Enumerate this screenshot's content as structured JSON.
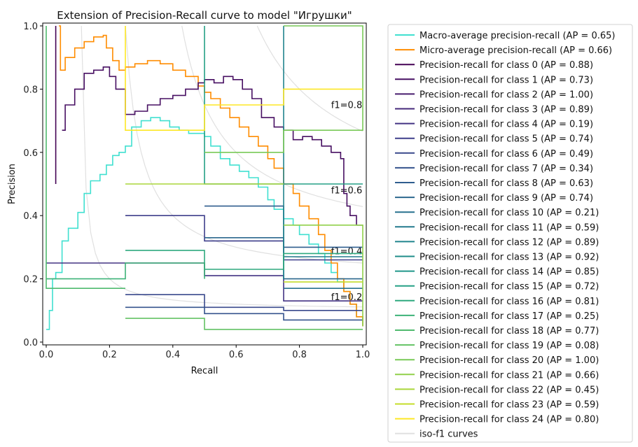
{
  "chart_data": {
    "type": "line",
    "title": "Extension of Precision-Recall curve to model \"Игрушки\"",
    "xlabel": "Recall",
    "ylabel": "Precision",
    "xlim": [
      0,
      1
    ],
    "ylim": [
      0,
      1
    ],
    "xticks": [
      "0.0",
      "0.2",
      "0.4",
      "0.6",
      "0.8",
      "1.0"
    ],
    "yticks": [
      "0.0",
      "0.2",
      "0.4",
      "0.6",
      "0.8",
      "1.0"
    ],
    "grid": false,
    "legend_position": "outside-right",
    "iso_f1": [
      {
        "f1": 0.2,
        "label": "f1=0.2"
      },
      {
        "f1": 0.4,
        "label": "f1=0.4"
      },
      {
        "f1": 0.6,
        "label": "f1=0.6"
      },
      {
        "f1": 0.8,
        "label": "f1=0.8"
      }
    ],
    "series": [
      {
        "name": "Macro-average precision-recall (AP = 0.65)",
        "color": "#40e0d0",
        "points": [
          [
            0,
            0.04
          ],
          [
            0.01,
            0.1
          ],
          [
            0.02,
            0.2
          ],
          [
            0.03,
            0.22
          ],
          [
            0.05,
            0.32
          ],
          [
            0.07,
            0.36
          ],
          [
            0.1,
            0.41
          ],
          [
            0.12,
            0.47
          ],
          [
            0.14,
            0.51
          ],
          [
            0.17,
            0.53
          ],
          [
            0.19,
            0.56
          ],
          [
            0.21,
            0.59
          ],
          [
            0.23,
            0.6
          ],
          [
            0.25,
            0.62
          ],
          [
            0.27,
            0.68
          ],
          [
            0.3,
            0.7
          ],
          [
            0.33,
            0.71
          ],
          [
            0.36,
            0.7
          ],
          [
            0.39,
            0.68
          ],
          [
            0.42,
            0.67
          ],
          [
            0.45,
            0.66
          ],
          [
            0.48,
            0.66
          ],
          [
            0.5,
            0.65
          ],
          [
            0.52,
            0.62
          ],
          [
            0.55,
            0.58
          ],
          [
            0.58,
            0.56
          ],
          [
            0.61,
            0.54
          ],
          [
            0.64,
            0.52
          ],
          [
            0.67,
            0.49
          ],
          [
            0.7,
            0.45
          ],
          [
            0.72,
            0.42
          ],
          [
            0.75,
            0.39
          ],
          [
            0.78,
            0.37
          ],
          [
            0.8,
            0.34
          ],
          [
            0.83,
            0.31
          ],
          [
            0.86,
            0.28
          ],
          [
            0.88,
            0.25
          ],
          [
            0.9,
            0.22
          ],
          [
            0.92,
            0.19
          ],
          [
            0.94,
            0.16
          ],
          [
            0.96,
            0.12
          ],
          [
            0.98,
            0.08
          ],
          [
            1.0,
            0.05
          ]
        ]
      },
      {
        "name": "Micro-average precision-recall (AP = 0.66)",
        "color": "#ff8c00",
        "points": [
          [
            0.04,
            1.0
          ],
          [
            0.045,
            0.86
          ],
          [
            0.06,
            0.9
          ],
          [
            0.09,
            0.93
          ],
          [
            0.12,
            0.95
          ],
          [
            0.15,
            0.965
          ],
          [
            0.18,
            0.97
          ],
          [
            0.19,
            0.93
          ],
          [
            0.21,
            0.89
          ],
          [
            0.23,
            0.86
          ],
          [
            0.25,
            0.87
          ],
          [
            0.28,
            0.88
          ],
          [
            0.32,
            0.89
          ],
          [
            0.36,
            0.88
          ],
          [
            0.4,
            0.86
          ],
          [
            0.44,
            0.84
          ],
          [
            0.48,
            0.81
          ],
          [
            0.5,
            0.79
          ],
          [
            0.52,
            0.77
          ],
          [
            0.55,
            0.74
          ],
          [
            0.58,
            0.71
          ],
          [
            0.61,
            0.68
          ],
          [
            0.64,
            0.65
          ],
          [
            0.67,
            0.62
          ],
          [
            0.7,
            0.58
          ],
          [
            0.72,
            0.55
          ],
          [
            0.75,
            0.5
          ],
          [
            0.78,
            0.47
          ],
          [
            0.8,
            0.43
          ],
          [
            0.83,
            0.39
          ],
          [
            0.86,
            0.34
          ],
          [
            0.88,
            0.29
          ],
          [
            0.9,
            0.25
          ],
          [
            0.92,
            0.2
          ],
          [
            0.94,
            0.16
          ],
          [
            0.96,
            0.12
          ],
          [
            0.98,
            0.08
          ],
          [
            1.0,
            0.05
          ]
        ]
      },
      {
        "name": "Precision-recall for class 0 (AP = 0.88)",
        "color": "#440154",
        "points": [
          [
            0.03,
            0.5
          ],
          [
            0.03,
            1.0
          ]
        ]
      },
      {
        "name": "Precision-recall for class 1 (AP = 0.73)",
        "color": "#470f62",
        "points": [
          [
            0.05,
            0.67
          ],
          [
            0.06,
            0.75
          ],
          [
            0.09,
            0.8
          ],
          [
            0.12,
            0.85
          ],
          [
            0.15,
            0.86
          ],
          [
            0.18,
            0.87
          ],
          [
            0.2,
            0.84
          ],
          [
            0.22,
            0.8
          ],
          [
            0.25,
            0.72
          ],
          [
            0.28,
            0.73
          ],
          [
            0.32,
            0.75
          ],
          [
            0.36,
            0.77
          ],
          [
            0.4,
            0.78
          ],
          [
            0.44,
            0.8
          ],
          [
            0.48,
            0.82
          ],
          [
            0.5,
            0.83
          ],
          [
            0.53,
            0.82
          ],
          [
            0.56,
            0.84
          ],
          [
            0.59,
            0.83
          ],
          [
            0.62,
            0.8
          ],
          [
            0.65,
            0.77
          ],
          [
            0.68,
            0.71
          ],
          [
            0.72,
            0.68
          ],
          [
            0.75,
            0.67
          ],
          [
            0.78,
            0.64
          ],
          [
            0.81,
            0.65
          ],
          [
            0.84,
            0.64
          ],
          [
            0.87,
            0.62
          ],
          [
            0.9,
            0.6
          ],
          [
            0.93,
            0.58
          ],
          [
            0.94,
            0.47
          ],
          [
            0.95,
            0.43
          ],
          [
            0.96,
            0.4
          ],
          [
            0.98,
            0.37
          ],
          [
            1.0,
            0.37
          ]
        ]
      },
      {
        "name": "Precision-recall for class 2 (AP = 1.00)",
        "color": "#481c6e",
        "points": []
      },
      {
        "name": "Precision-recall for class 3 (AP = 0.89)",
        "color": "#46287a",
        "points": []
      },
      {
        "name": "Precision-recall for class 4 (AP = 0.19)",
        "color": "#433383",
        "points": [
          [
            0,
            0.25
          ],
          [
            0.5,
            0.25
          ],
          [
            0.5,
            0.21
          ],
          [
            0.75,
            0.21
          ],
          [
            0.75,
            0.13
          ],
          [
            1,
            0.13
          ]
        ]
      },
      {
        "name": "Precision-recall for class 5 (AP = 0.74)",
        "color": "#3e3e8b",
        "points": [
          [
            0.25,
            0.4
          ],
          [
            0.5,
            0.4
          ],
          [
            0.5,
            0.32
          ],
          [
            0.75,
            0.32
          ],
          [
            0.75,
            0.26
          ],
          [
            1,
            0.26
          ]
        ]
      },
      {
        "name": "Precision-recall for class 6 (AP = 0.49)",
        "color": "#39498c",
        "points": [
          [
            0.25,
            0.15
          ],
          [
            0.5,
            0.15
          ],
          [
            0.5,
            0.11
          ],
          [
            0.75,
            0.11
          ],
          [
            0.75,
            0.1
          ],
          [
            1,
            0.1
          ]
        ]
      },
      {
        "name": "Precision-recall for class 7 (AP = 0.34)",
        "color": "#34538d",
        "points": [
          [
            0.25,
            0.11
          ],
          [
            0.5,
            0.11
          ],
          [
            0.5,
            0.09
          ],
          [
            0.75,
            0.09
          ],
          [
            0.75,
            0.07
          ],
          [
            1,
            0.07
          ]
        ]
      },
      {
        "name": "Precision-recall for class 8 (AP = 0.63)",
        "color": "#2f5d8e",
        "points": [
          [
            0.5,
            0.43
          ],
          [
            0.75,
            0.43
          ],
          [
            0.75,
            0.3
          ],
          [
            1,
            0.3
          ]
        ]
      },
      {
        "name": "Precision-recall for class 9 (AP = 0.74)",
        "color": "#2b678e",
        "points": [
          [
            0.5,
            0.33
          ],
          [
            0.75,
            0.33
          ],
          [
            0.75,
            0.2
          ],
          [
            1,
            0.2
          ]
        ]
      },
      {
        "name": "Precision-recall for class 10 (AP = 0.21)",
        "color": "#27718e",
        "points": [
          [
            0.75,
            0.17
          ],
          [
            1,
            0.17
          ]
        ]
      },
      {
        "name": "Precision-recall for class 11 (AP = 0.59)",
        "color": "#237a8e",
        "points": [
          [
            0.75,
            0.27
          ],
          [
            1,
            0.27
          ]
        ]
      },
      {
        "name": "Precision-recall for class 12 (AP = 0.89)",
        "color": "#20848d",
        "points": [
          [
            0.75,
            1.0
          ],
          [
            0.75,
            0.2
          ]
        ]
      },
      {
        "name": "Precision-recall for class 13 (AP = 0.92)",
        "color": "#1f8d8a",
        "points": []
      },
      {
        "name": "Precision-recall for class 14 (AP = 0.85)",
        "color": "#20968a",
        "points": []
      },
      {
        "name": "Precision-recall for class 15 (AP = 0.72)",
        "color": "#25a085",
        "points": [
          [
            0.5,
            1.0
          ],
          [
            0.5,
            0.5
          ],
          [
            0.75,
            0.5
          ],
          [
            0.75,
            0.5
          ],
          [
            1,
            0.5
          ]
        ]
      },
      {
        "name": "Precision-recall for class 16 (AP = 0.81)",
        "color": "#2fa97f",
        "points": [
          [
            0.25,
            0.29
          ],
          [
            0.5,
            0.29
          ],
          [
            0.5,
            0.23
          ],
          [
            0.75,
            0.23
          ],
          [
            0.75,
            0.28
          ],
          [
            1,
            0.28
          ]
        ]
      },
      {
        "name": "Precision-recall for class 17 (AP = 0.25)",
        "color": "#3db278",
        "points": [
          [
            0,
            0.2
          ],
          [
            0.25,
            0.2
          ],
          [
            0.25,
            0.25
          ],
          [
            0.5,
            0.25
          ],
          [
            0.5,
            0.2
          ]
        ]
      },
      {
        "name": "Precision-recall for class 18 (AP = 0.77)",
        "color": "#4fba6e",
        "points": [
          [
            0,
            1.0
          ],
          [
            0,
            0.17
          ],
          [
            0.25,
            0.17
          ]
        ]
      },
      {
        "name": "Precision-recall for class 19 (AP = 0.08)",
        "color": "#63c264",
        "points": [
          [
            0.25,
            0.075
          ],
          [
            0.5,
            0.075
          ],
          [
            0.5,
            0.04
          ],
          [
            0.75,
            0.04
          ],
          [
            1,
            0.04
          ]
        ]
      },
      {
        "name": "Precision-recall for class 20 (AP = 1.00)",
        "color": "#79c957",
        "points": [
          [
            0.5,
            0.6
          ],
          [
            0.75,
            0.6
          ],
          [
            0.75,
            0.67
          ],
          [
            1,
            0.67
          ],
          [
            1,
            1.0
          ],
          [
            0.75,
            1.0
          ]
        ]
      },
      {
        "name": "Precision-recall for class 21 (AP = 0.66)",
        "color": "#90d049",
        "points": [
          [
            0.75,
            0.37
          ],
          [
            1,
            0.37
          ],
          [
            1,
            0.05
          ]
        ]
      },
      {
        "name": "Precision-recall for class 22 (AP = 0.45)",
        "color": "#aad63a",
        "points": [
          [
            0.25,
            0.5
          ],
          [
            0.5,
            0.5
          ],
          [
            0.5,
            0.5
          ],
          [
            0.75,
            0.5
          ]
        ]
      },
      {
        "name": "Precision-recall for class 23 (AP = 0.59)",
        "color": "#c4dc2a",
        "points": [
          [
            0.75,
            0.19
          ],
          [
            1,
            0.19
          ]
        ]
      },
      {
        "name": "Precision-recall for class 24 (AP = 0.80)",
        "color": "#fde725",
        "points": [
          [
            0.25,
            1.0
          ],
          [
            0.25,
            0.67
          ],
          [
            0.5,
            0.67
          ],
          [
            0.5,
            0.75
          ],
          [
            0.75,
            0.75
          ],
          [
            0.75,
            0.8
          ],
          [
            1,
            0.8
          ]
        ]
      }
    ],
    "iso_legend": "iso-f1 curves",
    "iso_color": "#cccccc"
  }
}
